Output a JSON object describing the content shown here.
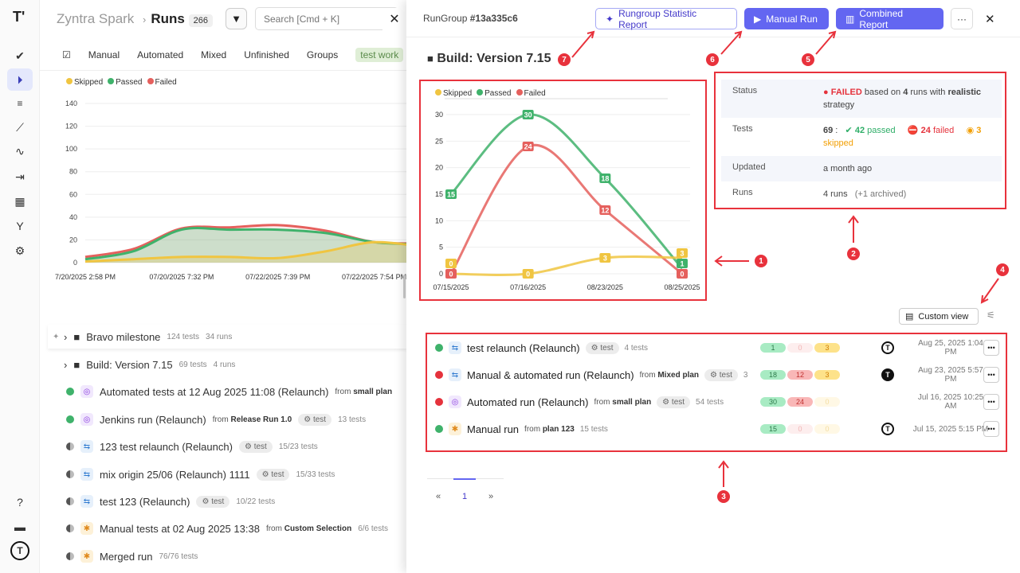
{
  "sidebar": {
    "logo": "T'",
    "items": [
      "check-icon",
      "play-circle-icon",
      "checklist-icon",
      "steps-icon",
      "pulse-icon",
      "import-icon",
      "report-icon",
      "branch-icon",
      "gear-icon"
    ],
    "bottom": [
      "help-icon",
      "folders-icon",
      "avatar"
    ]
  },
  "header": {
    "project": "Zyntra Spark",
    "separator": "›",
    "page": "Runs",
    "count": "266",
    "search_placeholder": "Search [Cmd + K]"
  },
  "tabs": [
    "Manual",
    "Automated",
    "Mixed",
    "Unfinished",
    "Groups"
  ],
  "active_tag": "test work",
  "colors": {
    "passed": "#3fb26b",
    "failed": "#e5605d",
    "skipped": "#f0c541",
    "accent": "#6366f1",
    "annotation": "#e8323c"
  },
  "chart_data": [
    {
      "type": "area",
      "legend": [
        "Skipped",
        "Passed",
        "Failed"
      ],
      "legend_placement": "top-left",
      "x": [
        "7/20/2025 2:58 PM",
        "",
        "07/20/2025 7:32 PM",
        "",
        "07/22/2025 7:39 PM",
        "",
        "07/22/2025 7:54 PM",
        ""
      ],
      "ylim": [
        0,
        140
      ],
      "yticks": [
        0,
        20,
        40,
        60,
        80,
        100,
        120,
        140
      ],
      "series": [
        {
          "name": "Failed",
          "values": [
            5,
            12,
            30,
            31,
            33,
            28,
            18,
            17
          ]
        },
        {
          "name": "Passed",
          "values": [
            3,
            10,
            29,
            29,
            29,
            26,
            18,
            16
          ]
        },
        {
          "name": "Skipped",
          "values": [
            1,
            3,
            5,
            5,
            4,
            10,
            18,
            14
          ]
        }
      ]
    },
    {
      "type": "line",
      "legend": [
        "Skipped",
        "Passed",
        "Failed"
      ],
      "legend_placement": "top-left",
      "categories": [
        "07/15/2025",
        "07/16/2025",
        "08/23/2025",
        "08/25/2025"
      ],
      "ylim": [
        0,
        30
      ],
      "yticks": [
        0,
        5,
        10,
        15,
        20,
        25,
        30
      ],
      "series": [
        {
          "name": "Passed",
          "values": [
            15,
            30,
            18,
            1
          ]
        },
        {
          "name": "Failed",
          "values": [
            0,
            24,
            12,
            0
          ]
        },
        {
          "name": "Skipped",
          "values": [
            0,
            0,
            3,
            3
          ]
        }
      ]
    }
  ],
  "runs_list": [
    {
      "kind": "group",
      "title": "Bravo milestone",
      "meta": "124 tests",
      "meta2": "34 runs"
    },
    {
      "kind": "group",
      "title": "Build: Version 7.15",
      "meta": "69 tests",
      "meta2": "4 runs"
    },
    {
      "status": "passed",
      "type": "automated",
      "title": "Automated tests at 12 Aug 2025 11:08 (Relaunch)",
      "from": "from",
      "plan": "small plan"
    },
    {
      "status": "passed",
      "type": "automated",
      "title": "Jenkins run (Relaunch)",
      "from": "from",
      "plan": "Release Run 1.0",
      "tag": "test",
      "meta": "13 tests"
    },
    {
      "status": "progress",
      "type": "mixed",
      "title": "123 test relaunch (Relaunch)",
      "tag": "test",
      "meta": "15/23 tests"
    },
    {
      "status": "progress",
      "type": "mixed",
      "title": "mix origin 25/06 (Relaunch) 1111",
      "tag": "test",
      "meta": "15/33 tests"
    },
    {
      "status": "progress",
      "type": "mixed",
      "title": "test 123  (Relaunch)",
      "tag": "test",
      "meta": "10/22 tests"
    },
    {
      "status": "progress",
      "type": "manual",
      "title": "Manual tests at 02 Aug 2025 13:38",
      "from": "from",
      "plan": "Custom Selection",
      "meta": "6/6 tests"
    },
    {
      "status": "progress",
      "type": "manual",
      "title": "Merged run",
      "meta": "76/76 tests"
    }
  ],
  "drawer": {
    "label": "RunGroup",
    "id": "#13a335c6",
    "buttons": {
      "statistic": "Rungroup Statistic Report",
      "manual": "Manual Run",
      "combined": "Combined Report",
      "more": "···",
      "close": "✕"
    },
    "title": "Build: Version 7.15",
    "info": {
      "status_k": "Status",
      "status_word": "FAILED",
      "status_rest1": " based on ",
      "status_runs": "4",
      "status_rest2": " runs with ",
      "status_strategy": "realistic",
      "status_rest3": " strategy",
      "tests_k": "Tests",
      "tests_total": "69",
      "tests_sep": " :",
      "passed": "42",
      "passed_w": "passed",
      "failed": "24",
      "failed_w": "failed",
      "skipped": "3",
      "skipped_w": "skipped",
      "updated_k": "Updated",
      "updated_v": "a month ago",
      "runs_k": "Runs",
      "runs_v": "4 runs",
      "runs_arch": "(+1 archived)"
    },
    "custom_view": "Custom view",
    "runs": [
      {
        "status": "passed",
        "type": "mixed",
        "title": "test relaunch (Relaunch)",
        "tag": "test",
        "meta": "4 tests",
        "p": "1",
        "f": "0",
        "s": "3",
        "date": "Aug 25, 2025 1:04 PM",
        "avatar": "outline"
      },
      {
        "status": "failed",
        "type": "mixed",
        "title": "Manual & automated run (Relaunch)",
        "from": "from",
        "plan": "Mixed plan",
        "tag": "test",
        "meta": "3",
        "p": "18",
        "f": "12",
        "s": "3",
        "date": "Aug 23, 2025 5:57 PM",
        "avatar": "filled"
      },
      {
        "status": "failed",
        "type": "automated",
        "title": "Automated run (Relaunch)",
        "from": "from",
        "plan": "small plan",
        "tag": "test",
        "meta": "54 tests",
        "p": "30",
        "f": "24",
        "s": "0",
        "date": "Jul 16, 2025 10:25 AM",
        "avatar": ""
      },
      {
        "status": "passed",
        "type": "manual",
        "title": "Manual run",
        "from": "from",
        "plan": "plan 123",
        "meta": "15 tests",
        "p": "15",
        "f": "0",
        "s": "0",
        "date": "Jul 15, 2025 5:15 PM",
        "avatar": "outline"
      }
    ],
    "pagination": {
      "prev": "«",
      "page": "1",
      "next": "»"
    }
  },
  "annotations": [
    "1",
    "2",
    "3",
    "4",
    "5",
    "6",
    "7"
  ]
}
